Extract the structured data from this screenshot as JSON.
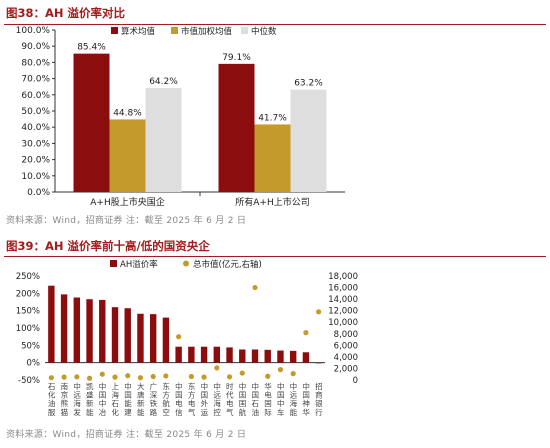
{
  "figures": [
    {
      "title": "图38：AH 溢价率对比",
      "source": "资料来源：Wind，招商证券  注：截至 2025 年 6 月 2 日"
    },
    {
      "title": "图39：AH 溢价率前十高/低的国资央企",
      "source": "资料来源：Wind，招商证券  注：截至 2025 年 6 月 2 日"
    }
  ],
  "chart_data": [
    {
      "type": "bar",
      "categories": [
        "A+H股上市央国企",
        "所有A+H上市公司"
      ],
      "series": [
        {
          "name": "算术均值",
          "values": [
            85.4,
            79.1
          ],
          "labels": [
            "85.4%",
            "79.1%"
          ],
          "color": "#8b0d0d"
        },
        {
          "name": "市值加权均值",
          "values": [
            44.8,
            41.7
          ],
          "labels": [
            "44.8%",
            "41.7%"
          ],
          "color": "#c49a2a"
        },
        {
          "name": "中位数",
          "values": [
            64.2,
            63.2
          ],
          "labels": [
            "64.2%",
            "63.2%"
          ],
          "color": "#dedede"
        }
      ],
      "ylim": [
        0,
        100
      ],
      "yticks": [
        "0.0%",
        "10.0%",
        "20.0%",
        "30.0%",
        "40.0%",
        "50.0%",
        "60.0%",
        "70.0%",
        "80.0%",
        "90.0%",
        "100.0%"
      ],
      "legend": "top",
      "grid": false
    },
    {
      "type": "bar+scatter",
      "categories": [
        "石化油服",
        "南京熊猫",
        "中远海发",
        "凯盛新能",
        "中国中冶",
        "上海石化",
        "中国能建",
        "大唐新能",
        "广深铁路",
        "东方航空",
        "中国电信",
        "东方电气",
        "中国外运",
        "中远海控",
        "时代电气",
        "中国国航",
        "中国石油",
        "华电国际",
        "中国中车",
        "中远海能",
        "中国神华",
        "招商银行"
      ],
      "series": [
        {
          "name": "AH溢价率",
          "axis": "left",
          "color": "#8b0d0d",
          "values": [
            222,
            197,
            188,
            183,
            181,
            160,
            157,
            141,
            140,
            130,
            46,
            46,
            46,
            46,
            44,
            38,
            38,
            37,
            35,
            34,
            30,
            -2
          ]
        },
        {
          "name": "总市值(亿元,右轴)",
          "axis": "right",
          "color": "#c49a2a",
          "values": [
            400,
            500,
            550,
            300,
            1000,
            500,
            750,
            400,
            600,
            700,
            7500,
            600,
            500,
            2100,
            550,
            1200,
            16000,
            650,
            1800,
            1100,
            8200,
            11800
          ]
        }
      ],
      "y_left_ticks": [
        "-50%",
        "0%",
        "50%",
        "100%",
        "150%",
        "200%",
        "250%"
      ],
      "y_left_range": [
        -50,
        250
      ],
      "y_right_ticks": [
        "0",
        "2,000",
        "4,000",
        "6,000",
        "8,000",
        "10,000",
        "12,000",
        "14,000",
        "16,000",
        "18,000"
      ],
      "y_right_range": [
        0,
        18000
      ],
      "legend": "top",
      "grid": false
    }
  ]
}
